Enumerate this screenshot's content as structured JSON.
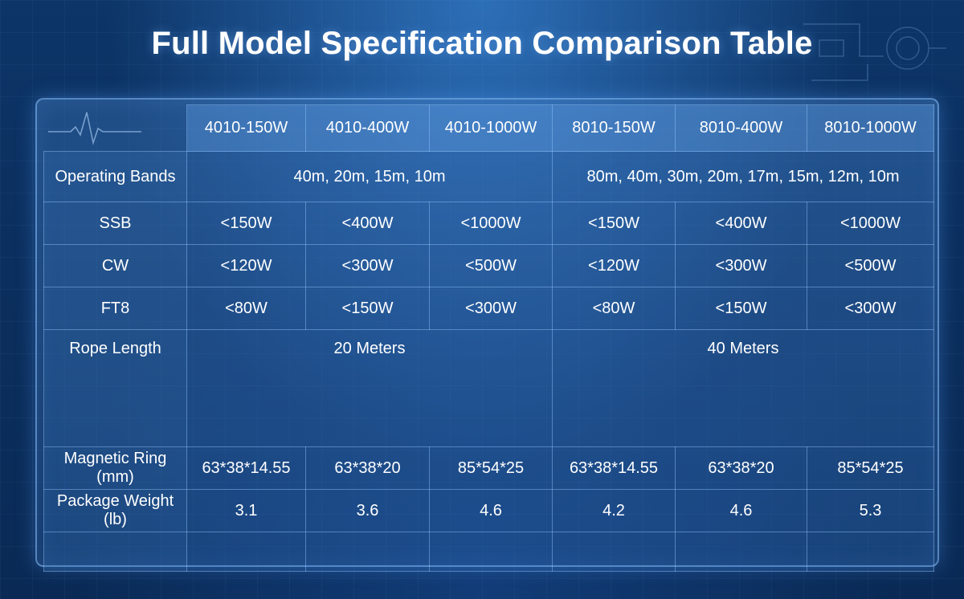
{
  "title": "Full Model Specification Comparison Table",
  "table": {
    "models": [
      "4010-150W",
      "4010-400W",
      "4010-1000W",
      "8010-150W",
      "8010-400W",
      "8010-1000W"
    ],
    "operating_bands": {
      "label": "Operating Bands",
      "group_4010": "40m, 20m, 15m, 10m",
      "group_8010": "80m, 40m, 30m, 20m, 17m, 15m, 12m, 10m"
    },
    "ssb": {
      "label": "SSB",
      "values": [
        "<150W",
        "<400W",
        "<1000W",
        "<150W",
        "<400W",
        "<1000W"
      ]
    },
    "cw": {
      "label": "CW",
      "values": [
        "<120W",
        "<300W",
        "<500W",
        "<120W",
        "<300W",
        "<500W"
      ]
    },
    "ft8": {
      "label": "FT8",
      "values": [
        "<80W",
        "<150W",
        "<300W",
        "<80W",
        "<150W",
        "<300W"
      ]
    },
    "rope_length": {
      "label": "Rope Length",
      "group_4010": "20 Meters",
      "group_8010": "40 Meters"
    },
    "magnetic_ring": {
      "label": "Magnetic Ring (mm)",
      "values": [
        "63*38*14.55",
        "63*38*20",
        "85*54*25",
        "63*38*14.55",
        "63*38*20",
        "85*54*25"
      ]
    },
    "package_weight": {
      "label": "Package Weight (lb)",
      "values": [
        "3.1",
        "3.6",
        "4.6",
        "4.2",
        "4.6",
        "5.3"
      ]
    }
  }
}
